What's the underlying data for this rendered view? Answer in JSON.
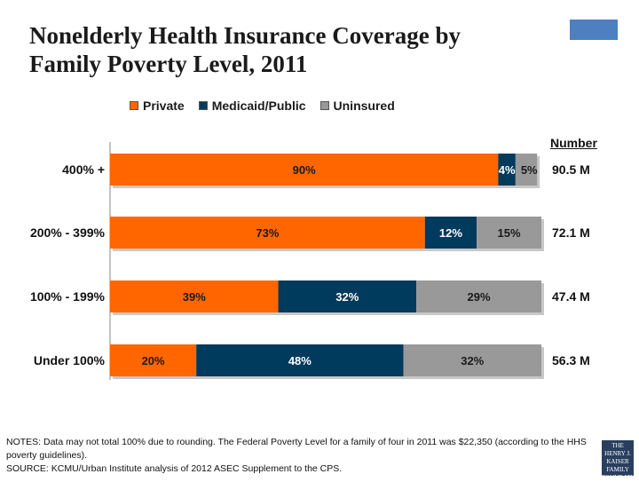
{
  "title": {
    "line1": "Nonelderly Health Insurance Coverage by",
    "line2": "Family Poverty Level, 2011"
  },
  "number_header": "Number",
  "notes": {
    "line1": "NOTES: Data may not total 100% due to rounding.  The Federal Poverty Level for a family of four in 2011 was $22,350 (according to the HHS poverty guidelines).",
    "line2": "SOURCE: KCMU/Urban Institute analysis of 2012 ASEC Supplement to the CPS."
  },
  "logo": {
    "line1": "THE HENRY J.",
    "line2": "KAISER",
    "line3": "FAMILY",
    "line4": "FOUNDATION"
  },
  "colors": {
    "private": "#ff6600",
    "medicaid": "#003a5c",
    "uninsured": "#999999",
    "label_light": "#ffffff",
    "label_dark": "#1a1a1a"
  },
  "chart_data": {
    "type": "bar",
    "orientation": "horizontal",
    "stacked": true,
    "title": "Nonelderly Health Insurance Coverage by Family Poverty Level, 2011",
    "categories": [
      "400% +",
      "200% - 399%",
      "100% - 199%",
      "Under 100%"
    ],
    "series": [
      {
        "name": "Private",
        "values": [
          90,
          73,
          39,
          20
        ],
        "labels": [
          "90%",
          "73%",
          "39%",
          "20%"
        ]
      },
      {
        "name": "Medicaid/Public",
        "values": [
          4,
          12,
          32,
          48
        ],
        "labels": [
          "4%",
          "12%",
          "32%",
          "48%"
        ]
      },
      {
        "name": "Uninsured",
        "values": [
          5,
          15,
          29,
          32
        ],
        "labels": [
          "5%",
          "15%",
          "29%",
          "32%"
        ]
      }
    ],
    "numbers": [
      "90.5 M",
      "72.1 M",
      "47.4 M",
      "56.3 M"
    ],
    "xlim": [
      0,
      100
    ],
    "legend": "top"
  }
}
